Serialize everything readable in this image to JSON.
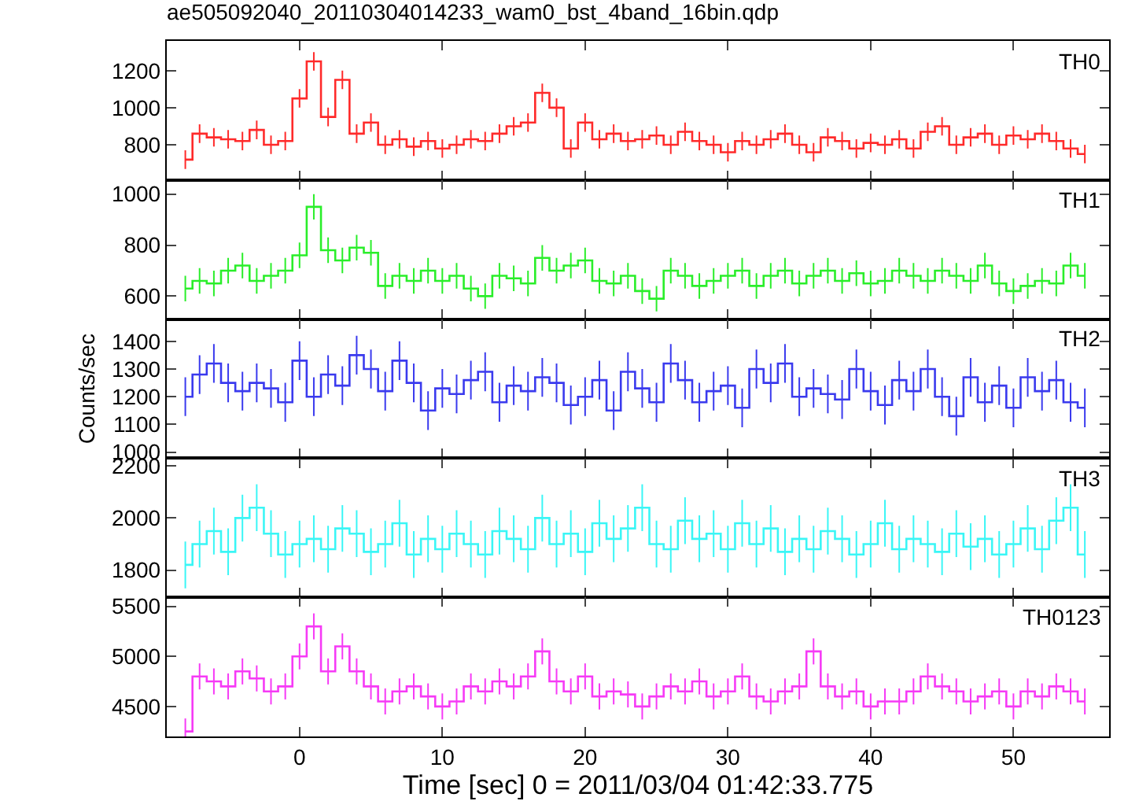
{
  "chart_data": [
    {
      "type": "step",
      "title": "ae505092040_20110304014233_wam0_bst_4band_16bin.qdp",
      "x": [
        -8,
        -7,
        -6,
        -5,
        -4,
        -3,
        -2,
        -1,
        0,
        1,
        2,
        3,
        4,
        5,
        6,
        7,
        8,
        9,
        10,
        11,
        12,
        13,
        14,
        15,
        16,
        17,
        18,
        19,
        20,
        21,
        22,
        23,
        24,
        25,
        26,
        27,
        28,
        29,
        30,
        31,
        32,
        33,
        34,
        35,
        36,
        37,
        38,
        39,
        40,
        41,
        42,
        43,
        44,
        45,
        46,
        47,
        48,
        49,
        50,
        51,
        52,
        53,
        54,
        55
      ],
      "xlim": [
        -9.3,
        56.7
      ],
      "xticks": [
        0,
        10,
        20,
        30,
        40,
        50
      ],
      "ylim": [
        610,
        1360
      ],
      "yticks": [
        800,
        1000,
        1200
      ],
      "tick_labels": "y",
      "series": [
        {
          "name": "TH0",
          "color": "#ff2a2a",
          "values": [
            720,
            860,
            840,
            830,
            820,
            880,
            800,
            820,
            1050,
            1250,
            950,
            1150,
            860,
            920,
            800,
            830,
            790,
            820,
            780,
            800,
            830,
            820,
            860,
            900,
            920,
            1080,
            1000,
            780,
            920,
            830,
            860,
            820,
            830,
            850,
            800,
            870,
            820,
            800,
            760,
            820,
            800,
            830,
            860,
            800,
            760,
            840,
            820,
            780,
            810,
            800,
            830,
            780,
            870,
            900,
            800,
            840,
            860,
            800,
            850,
            830,
            860,
            820,
            780,
            750
          ],
          "errors": [
            50,
            50,
            50,
            50,
            50,
            50,
            50,
            50,
            50,
            50,
            50,
            50,
            50,
            50,
            50,
            50,
            50,
            50,
            50,
            50,
            50,
            50,
            50,
            50,
            50,
            50,
            50,
            50,
            50,
            50,
            50,
            50,
            50,
            50,
            50,
            50,
            50,
            50,
            50,
            50,
            50,
            50,
            50,
            50,
            50,
            50,
            50,
            50,
            50,
            50,
            50,
            50,
            50,
            50,
            50,
            50,
            50,
            50,
            50,
            50,
            50,
            50,
            50,
            50
          ]
        }
      ]
    },
    {
      "type": "step",
      "x": [
        -8,
        -7,
        -6,
        -5,
        -4,
        -3,
        -2,
        -1,
        0,
        1,
        2,
        3,
        4,
        5,
        6,
        7,
        8,
        9,
        10,
        11,
        12,
        13,
        14,
        15,
        16,
        17,
        18,
        19,
        20,
        21,
        22,
        23,
        24,
        25,
        26,
        27,
        28,
        29,
        30,
        31,
        32,
        33,
        34,
        35,
        36,
        37,
        38,
        39,
        40,
        41,
        42,
        43,
        44,
        45,
        46,
        47,
        48,
        49,
        50,
        51,
        52,
        53,
        54,
        55
      ],
      "xlim": [
        -9.3,
        56.7
      ],
      "xticks": [
        0,
        10,
        20,
        30,
        40,
        50
      ],
      "ylim": [
        510,
        1055
      ],
      "yticks": [
        600,
        800,
        1000
      ],
      "tick_labels": "y",
      "series": [
        {
          "name": "TH1",
          "color": "#2aee2a",
          "values": [
            630,
            660,
            650,
            700,
            720,
            660,
            680,
            700,
            760,
            950,
            780,
            740,
            790,
            770,
            640,
            680,
            660,
            700,
            660,
            680,
            630,
            600,
            680,
            670,
            650,
            750,
            700,
            720,
            740,
            660,
            650,
            680,
            620,
            590,
            700,
            680,
            640,
            660,
            680,
            700,
            640,
            680,
            700,
            650,
            680,
            700,
            660,
            690,
            650,
            660,
            700,
            680,
            660,
            700,
            680,
            660,
            720,
            650,
            620,
            640,
            660,
            650,
            720,
            680
          ],
          "errors": [
            50,
            50,
            50,
            50,
            50,
            50,
            50,
            50,
            50,
            50,
            50,
            50,
            50,
            50,
            50,
            50,
            50,
            50,
            50,
            50,
            50,
            50,
            50,
            50,
            50,
            50,
            50,
            50,
            50,
            50,
            50,
            50,
            50,
            50,
            50,
            50,
            50,
            50,
            50,
            50,
            50,
            50,
            50,
            50,
            50,
            50,
            50,
            50,
            50,
            50,
            50,
            50,
            50,
            50,
            50,
            50,
            50,
            50,
            50,
            50,
            50,
            50,
            50,
            50
          ]
        }
      ]
    },
    {
      "type": "step",
      "ylabel": "Counts/sec",
      "x": [
        -8,
        -7,
        -6,
        -5,
        -4,
        -3,
        -2,
        -1,
        0,
        1,
        2,
        3,
        4,
        5,
        6,
        7,
        8,
        9,
        10,
        11,
        12,
        13,
        14,
        15,
        16,
        17,
        18,
        19,
        20,
        21,
        22,
        23,
        24,
        25,
        26,
        27,
        28,
        29,
        30,
        31,
        32,
        33,
        34,
        35,
        36,
        37,
        38,
        39,
        40,
        41,
        42,
        43,
        44,
        45,
        46,
        47,
        48,
        49,
        50,
        51,
        52,
        53,
        54,
        55
      ],
      "xlim": [
        -9.3,
        56.7
      ],
      "xticks": [
        0,
        10,
        20,
        30,
        40,
        50
      ],
      "ylim": [
        978,
        1480
      ],
      "yticks": [
        1000,
        1100,
        1200,
        1300,
        1400
      ],
      "tick_labels": "y",
      "series": [
        {
          "name": "TH2",
          "color": "#3a3aee",
          "values": [
            1200,
            1280,
            1320,
            1250,
            1220,
            1250,
            1230,
            1180,
            1330,
            1200,
            1280,
            1240,
            1350,
            1300,
            1220,
            1330,
            1250,
            1150,
            1230,
            1210,
            1260,
            1290,
            1180,
            1240,
            1220,
            1270,
            1250,
            1170,
            1200,
            1260,
            1150,
            1290,
            1230,
            1180,
            1320,
            1260,
            1180,
            1220,
            1240,
            1160,
            1300,
            1250,
            1320,
            1200,
            1230,
            1210,
            1190,
            1300,
            1220,
            1170,
            1260,
            1220,
            1300,
            1200,
            1130,
            1270,
            1180,
            1240,
            1160,
            1270,
            1220,
            1260,
            1180,
            1160
          ],
          "errors": [
            70,
            70,
            70,
            70,
            70,
            70,
            70,
            70,
            70,
            70,
            70,
            70,
            70,
            70,
            70,
            70,
            70,
            70,
            70,
            70,
            70,
            70,
            70,
            70,
            70,
            70,
            70,
            70,
            70,
            70,
            70,
            70,
            70,
            70,
            70,
            70,
            70,
            70,
            70,
            70,
            70,
            70,
            70,
            70,
            70,
            70,
            70,
            70,
            70,
            70,
            70,
            70,
            70,
            70,
            70,
            70,
            70,
            70,
            70,
            70,
            70,
            70,
            70,
            70
          ]
        }
      ]
    },
    {
      "type": "step",
      "x": [
        -8,
        -7,
        -6,
        -5,
        -4,
        -3,
        -2,
        -1,
        0,
        1,
        2,
        3,
        4,
        5,
        6,
        7,
        8,
        9,
        10,
        11,
        12,
        13,
        14,
        15,
        16,
        17,
        18,
        19,
        20,
        21,
        22,
        23,
        24,
        25,
        26,
        27,
        28,
        29,
        30,
        31,
        32,
        33,
        34,
        35,
        36,
        37,
        38,
        39,
        40,
        41,
        42,
        43,
        44,
        45,
        46,
        47,
        48,
        49,
        50,
        51,
        52,
        53,
        54,
        55
      ],
      "xlim": [
        -9.3,
        56.7
      ],
      "xticks": [
        0,
        10,
        20,
        30,
        40,
        50
      ],
      "ylim": [
        1695,
        2230
      ],
      "yticks": [
        1800,
        2000,
        2200
      ],
      "tick_labels": "y",
      "series": [
        {
          "name": "TH3",
          "color": "#3af6f6",
          "values": [
            1820,
            1900,
            1950,
            1870,
            2000,
            2040,
            1940,
            1860,
            1900,
            1920,
            1880,
            1960,
            1940,
            1870,
            1900,
            1980,
            1860,
            1920,
            1880,
            1940,
            1900,
            1860,
            1950,
            1920,
            1880,
            2000,
            1900,
            1940,
            1870,
            1980,
            1920,
            1960,
            2040,
            1900,
            1880,
            1990,
            1920,
            1940,
            1880,
            1980,
            1900,
            1960,
            1870,
            1920,
            1880,
            1950,
            1920,
            1860,
            1900,
            1980,
            1880,
            1920,
            1900,
            1870,
            1940,
            1890,
            1920,
            1860,
            1900,
            1960,
            1880,
            1990,
            2040,
            1860
          ],
          "errors": [
            90,
            90,
            90,
            90,
            90,
            90,
            90,
            90,
            90,
            90,
            90,
            90,
            90,
            90,
            90,
            90,
            90,
            90,
            90,
            90,
            90,
            90,
            90,
            90,
            90,
            90,
            90,
            90,
            90,
            90,
            90,
            90,
            90,
            90,
            90,
            90,
            90,
            90,
            90,
            90,
            90,
            90,
            90,
            90,
            90,
            90,
            90,
            90,
            90,
            90,
            90,
            90,
            90,
            90,
            90,
            90,
            90,
            90,
            90,
            90,
            90,
            90,
            90,
            90
          ]
        }
      ]
    },
    {
      "type": "step",
      "xlabel": "Time [sec] 0 = 2011/03/04 01:42:33.775",
      "x": [
        -8,
        -7,
        -6,
        -5,
        -4,
        -3,
        -2,
        -1,
        0,
        1,
        2,
        3,
        4,
        5,
        6,
        7,
        8,
        9,
        10,
        11,
        12,
        13,
        14,
        15,
        16,
        17,
        18,
        19,
        20,
        21,
        22,
        23,
        24,
        25,
        26,
        27,
        28,
        29,
        30,
        31,
        32,
        33,
        34,
        35,
        36,
        37,
        38,
        39,
        40,
        41,
        42,
        43,
        44,
        45,
        46,
        47,
        48,
        49,
        50,
        51,
        52,
        53,
        54,
        55
      ],
      "xlim": [
        -9.3,
        56.7
      ],
      "xticks": [
        0,
        10,
        20,
        30,
        40,
        50
      ],
      "ylim": [
        4200,
        5590
      ],
      "yticks": [
        4500,
        5000,
        5500
      ],
      "series": [
        {
          "name": "TH0123",
          "color": "#f63af6",
          "values": [
            4250,
            4800,
            4750,
            4700,
            4850,
            4780,
            4650,
            4700,
            5000,
            5300,
            4850,
            5100,
            4850,
            4700,
            4550,
            4650,
            4700,
            4600,
            4500,
            4550,
            4700,
            4650,
            4750,
            4700,
            4800,
            5050,
            4750,
            4650,
            4800,
            4600,
            4650,
            4620,
            4500,
            4600,
            4700,
            4650,
            4750,
            4600,
            4650,
            4800,
            4600,
            4550,
            4650,
            4700,
            5050,
            4700,
            4600,
            4650,
            4500,
            4550,
            4550,
            4650,
            4800,
            4700,
            4650,
            4550,
            4600,
            4650,
            4500,
            4650,
            4600,
            4700,
            4650,
            4550
          ],
          "errors": [
            130,
            130,
            130,
            130,
            130,
            130,
            130,
            130,
            130,
            130,
            130,
            130,
            130,
            130,
            130,
            130,
            130,
            130,
            130,
            130,
            130,
            130,
            130,
            130,
            130,
            130,
            130,
            130,
            130,
            130,
            130,
            130,
            130,
            130,
            130,
            130,
            130,
            130,
            130,
            130,
            130,
            130,
            130,
            130,
            130,
            130,
            130,
            130,
            130,
            130,
            130,
            130,
            130,
            130,
            130,
            130,
            130,
            130,
            130,
            130,
            130,
            130,
            130,
            130
          ]
        }
      ]
    }
  ]
}
